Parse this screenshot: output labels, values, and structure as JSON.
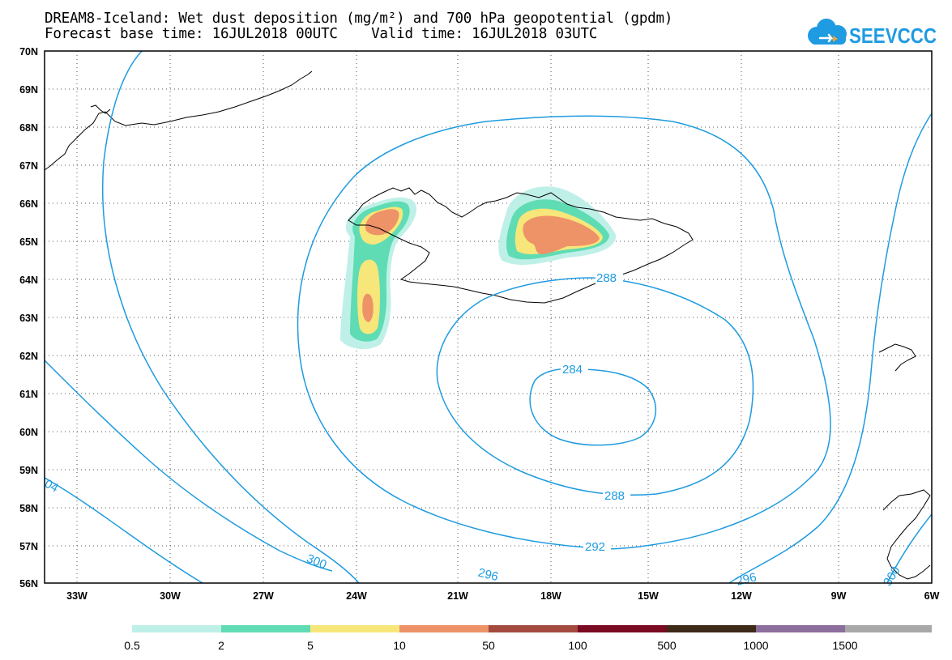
{
  "header": {
    "title_line1": "DREAM8-Iceland: Wet dust deposition (mg/m²) and 700 hPa geopotential (gpdm)",
    "title_line2": "Forecast base time: 16JUL2018 00UTC    Valid time: 16JUL2018 03UTC"
  },
  "logo": {
    "text": "SEEVCCC",
    "color": "#1f9be2"
  },
  "map": {
    "lat_labels": [
      "70N",
      "69N",
      "68N",
      "67N",
      "66N",
      "65N",
      "64N",
      "63N",
      "62N",
      "61N",
      "60N",
      "59N",
      "58N",
      "57N",
      "56N"
    ],
    "lon_labels": [
      "33W",
      "30W",
      "27W",
      "24W",
      "21W",
      "18W",
      "15W",
      "12W",
      "9W",
      "6W"
    ],
    "lat_range": [
      56,
      70
    ],
    "lon_range": [
      -34.5,
      -6
    ],
    "grid": "dotted",
    "contour_color": "#1e9be0",
    "contour_labels": [
      "288",
      "284",
      "288",
      "292",
      "296",
      "296",
      "300",
      "300",
      "04"
    ]
  },
  "legend": {
    "colors": [
      "#bff0e8",
      "#5fdcb4",
      "#f7e67a",
      "#ee9268",
      "#a44a3f",
      "#7a0a22",
      "#3d2a17",
      "#8c6d9c",
      "#a8a8a8"
    ],
    "labels": [
      "0.5",
      "2",
      "5",
      "10",
      "50",
      "100",
      "500",
      "1000",
      "1500"
    ]
  }
}
